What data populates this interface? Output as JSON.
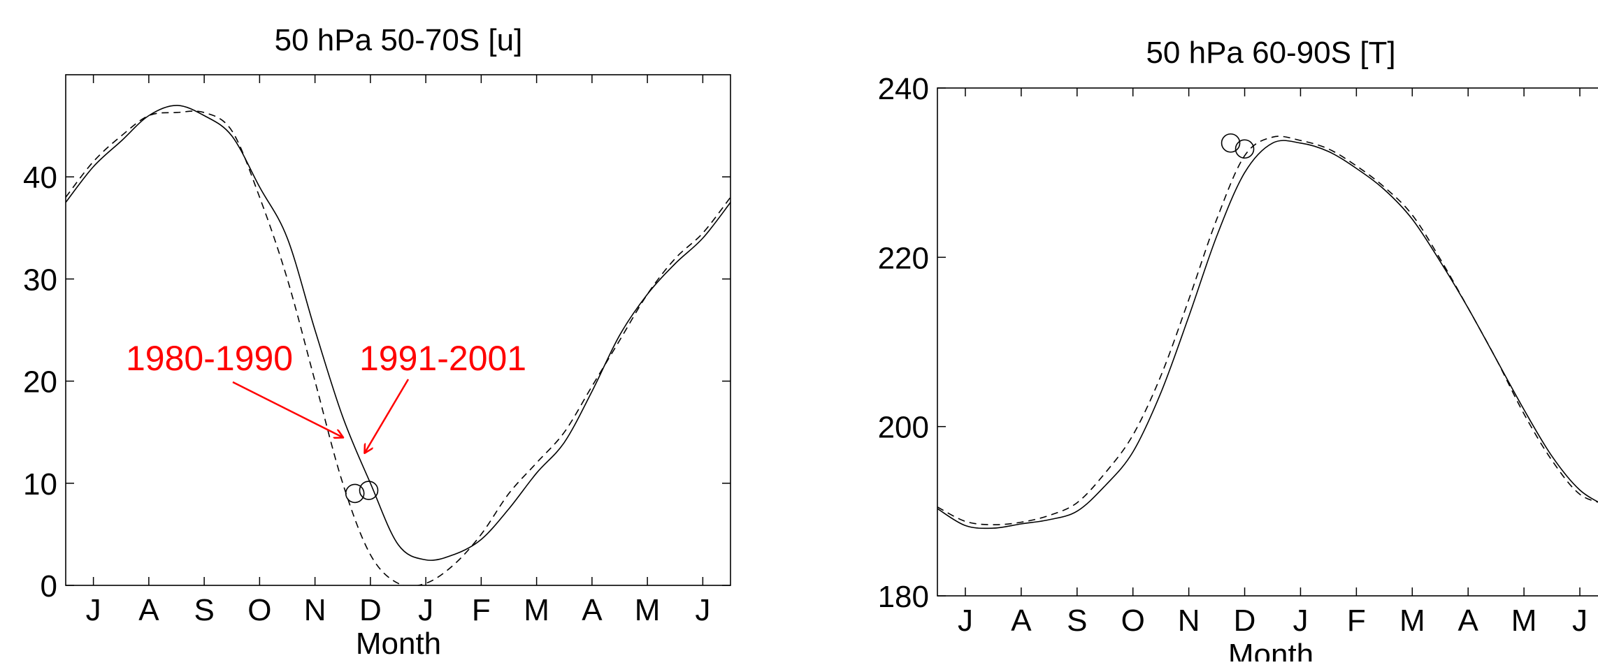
{
  "chart_data": [
    {
      "type": "line",
      "title": "50 hPa 50-70S [u]",
      "xlabel": "Month",
      "ylabel": "",
      "categories": [
        "J",
        "A",
        "S",
        "O",
        "N",
        "D",
        "J",
        "F",
        "M",
        "A",
        "M",
        "J"
      ],
      "xlim": [
        0.5,
        12.5
      ],
      "ylim": [
        0,
        50
      ],
      "yticks": [
        0,
        10,
        20,
        30,
        40
      ],
      "grid": false,
      "series": [
        {
          "name": "1991-2001",
          "style": "solid",
          "x": [
            0.5,
            1.0,
            1.5,
            2.0,
            2.5,
            3.0,
            3.5,
            4.0,
            4.5,
            5.0,
            5.5,
            6.0,
            6.5,
            7.0,
            7.5,
            8.0,
            8.5,
            9.0,
            9.5,
            10.0,
            10.5,
            11.0,
            11.5,
            12.0,
            12.5
          ],
          "values": [
            37.5,
            41,
            43.5,
            46,
            47,
            46,
            44,
            39,
            34,
            25,
            16.5,
            10,
            4,
            2.5,
            3,
            4.5,
            7.5,
            11,
            14,
            19,
            24.5,
            28.5,
            31.5,
            34,
            37.5
          ]
        },
        {
          "name": "1980-1990",
          "style": "dashed",
          "x": [
            0.5,
            1.0,
            1.5,
            2.0,
            2.5,
            3.0,
            3.5,
            4.0,
            4.5,
            5.0,
            5.5,
            6.0,
            6.5,
            7.0,
            7.5,
            8.0,
            8.5,
            9.0,
            9.5,
            10.0,
            10.5,
            11.0,
            11.5,
            12.0,
            12.5
          ],
          "values": [
            38,
            41.5,
            44,
            46,
            46.3,
            46.3,
            44.5,
            38,
            30,
            20,
            10,
            3,
            0.2,
            0.2,
            2,
            5,
            9,
            12,
            15,
            19.5,
            24,
            28.5,
            32,
            34.5,
            38
          ]
        }
      ],
      "markers": [
        {
          "x": 5.72,
          "y": 9.0
        },
        {
          "x": 5.97,
          "y": 9.3
        }
      ],
      "annotations": [
        {
          "text": "1980-1990",
          "target_x": 5.5,
          "target_y": 14.5
        },
        {
          "text": "1991-2001",
          "target_x": 5.9,
          "target_y": 13
        }
      ]
    },
    {
      "type": "line",
      "title": "50 hPa 60-90S [T]",
      "xlabel": "Month",
      "ylabel": "",
      "categories": [
        "J",
        "A",
        "S",
        "O",
        "N",
        "D",
        "J",
        "F",
        "M",
        "A",
        "M",
        "J"
      ],
      "xlim": [
        0.5,
        12.5
      ],
      "ylim": [
        180,
        240
      ],
      "yticks": [
        180,
        200,
        220,
        240
      ],
      "grid": false,
      "series": [
        {
          "name": "1991-2001",
          "style": "solid",
          "x": [
            0.5,
            1.0,
            1.5,
            2.0,
            2.5,
            3.0,
            3.5,
            4.0,
            4.5,
            5.0,
            5.5,
            6.0,
            6.5,
            7.0,
            7.5,
            8.0,
            8.5,
            9.0,
            9.5,
            10.0,
            10.5,
            11.0,
            11.5,
            12.0,
            12.5
          ],
          "values": [
            190.3,
            188.3,
            188,
            188.5,
            189,
            190,
            193,
            197,
            204,
            213,
            222.5,
            230,
            233.5,
            233.5,
            232.5,
            230.5,
            228,
            224.5,
            219.5,
            214,
            208,
            202,
            196.5,
            192.5,
            190.5
          ]
        },
        {
          "name": "1980-1990",
          "style": "dashed",
          "x": [
            0.5,
            1.0,
            1.5,
            2.0,
            2.5,
            3.0,
            3.5,
            4.0,
            4.5,
            5.0,
            5.5,
            6.0,
            6.5,
            7.0,
            7.5,
            8.0,
            8.5,
            9.0,
            9.5,
            10.0,
            10.5,
            11.0,
            11.5,
            12.0,
            12.5
          ],
          "values": [
            190.5,
            188.8,
            188.4,
            188.7,
            189.5,
            191,
            194.5,
            199,
            206,
            215,
            224.5,
            232,
            234.2,
            233.8,
            232.8,
            230.8,
            228.3,
            225,
            219.8,
            214,
            208,
            201.5,
            196,
            192,
            190.8
          ]
        }
      ],
      "markers": [
        {
          "x": 5.75,
          "y": 233.5
        },
        {
          "x": 6.0,
          "y": 232.8
        }
      ]
    }
  ]
}
